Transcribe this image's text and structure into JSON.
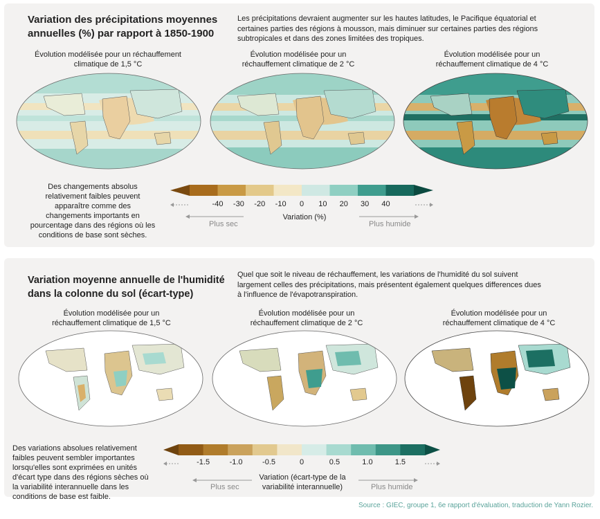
{
  "precip": {
    "title_line1": "Variation des précipitations moyennes",
    "title_line2": "annuelles (%) par rapport à 1850-1900",
    "desc_lines": [
      "Les précipitations devraient augmenter sur les hautes latitudes, le Pacifique équatorial et",
      "certaines parties des régions à mousson, mais diminuer sur certaines parties des régions",
      "subtropicales et dans des zones limitées des tropiques."
    ],
    "maps": [
      {
        "caption_line1": "Évolution modélisée pour un réchauffement",
        "caption_line2": "climatique de 1,5 °C"
      },
      {
        "caption_line1": "Évolution modélisée pour un",
        "caption_line2": "réchauffement climatique de 2 °C"
      },
      {
        "caption_line1": "Évolution modélisée pour un",
        "caption_line2": "réchauffement climatique de 4 °C"
      }
    ],
    "note_lines": [
      "Des changements absolus",
      "relativement faibles peuvent",
      "apparaître comme des",
      "changements importants en",
      "pourcentage dans des régions où les",
      "conditions de base sont sèches."
    ],
    "ticks": [
      "-40",
      "-30",
      "-20",
      "-10",
      "0",
      "10",
      "20",
      "30",
      "40"
    ],
    "axis_label": "Variation (%)",
    "drier": "Plus sec",
    "wetter": "Plus humide",
    "colors": [
      "#7a4a10",
      "#a86c1d",
      "#c99a45",
      "#e3c98a",
      "#f3e7c6",
      "#cfe8e3",
      "#8fcfc2",
      "#3f9d8e",
      "#17695d",
      "#0b4a40"
    ]
  },
  "soil": {
    "title_line1": "Variation moyenne annuelle de l'humidité",
    "title_line2": "dans la colonne du sol (écart-type)",
    "desc_lines": [
      "Quel que soit le niveau de réchauffement, les variations de l'humidité du sol suivent",
      "largement celles des précipitations, mais présentent également quelques differences dues",
      "à l'influence de l'évapotranspiration."
    ],
    "maps": [
      {
        "caption_line1": "Évolution modélisée pour un",
        "caption_line2": "réchauffement climatique de 1,5 °C"
      },
      {
        "caption_line1": "Évolution modélisée pour un",
        "caption_line2": "réchauffement climatique de 2 °C"
      },
      {
        "caption_line1": "Évolution modélisée pour un",
        "caption_line2": "réchauffement climatique de 4 °C"
      }
    ],
    "note_lines": [
      "Des variations absolues relativement",
      "faibles peuvent sembler importantes",
      "lorsqu'elles sont exprimées en unités",
      "d'écart type dans des régions sèches où",
      "la variabilité interannuelle dans les",
      "conditions de base est faible."
    ],
    "ticks": [
      "-1.5",
      "-1.0",
      "-0.5",
      "0",
      "0.5",
      "1.0",
      "1.5"
    ],
    "axis_label_line1": "Variation (écart-type de la",
    "axis_label_line2": "variabilité interannuelle)",
    "drier": "Plus sec",
    "wetter": "Plus humide",
    "colors": [
      "#6e430e",
      "#915b16",
      "#b07c2c",
      "#caa25c",
      "#e2c98f",
      "#f1e6c9",
      "#d6ece7",
      "#a8dad0",
      "#6fbcae",
      "#3d9687",
      "#1c6f62",
      "#0d5046"
    ]
  },
  "source": "Source : GIEC, groupe 1, 6e rapport d'évaluation, traduction de Yann Rozier."
}
